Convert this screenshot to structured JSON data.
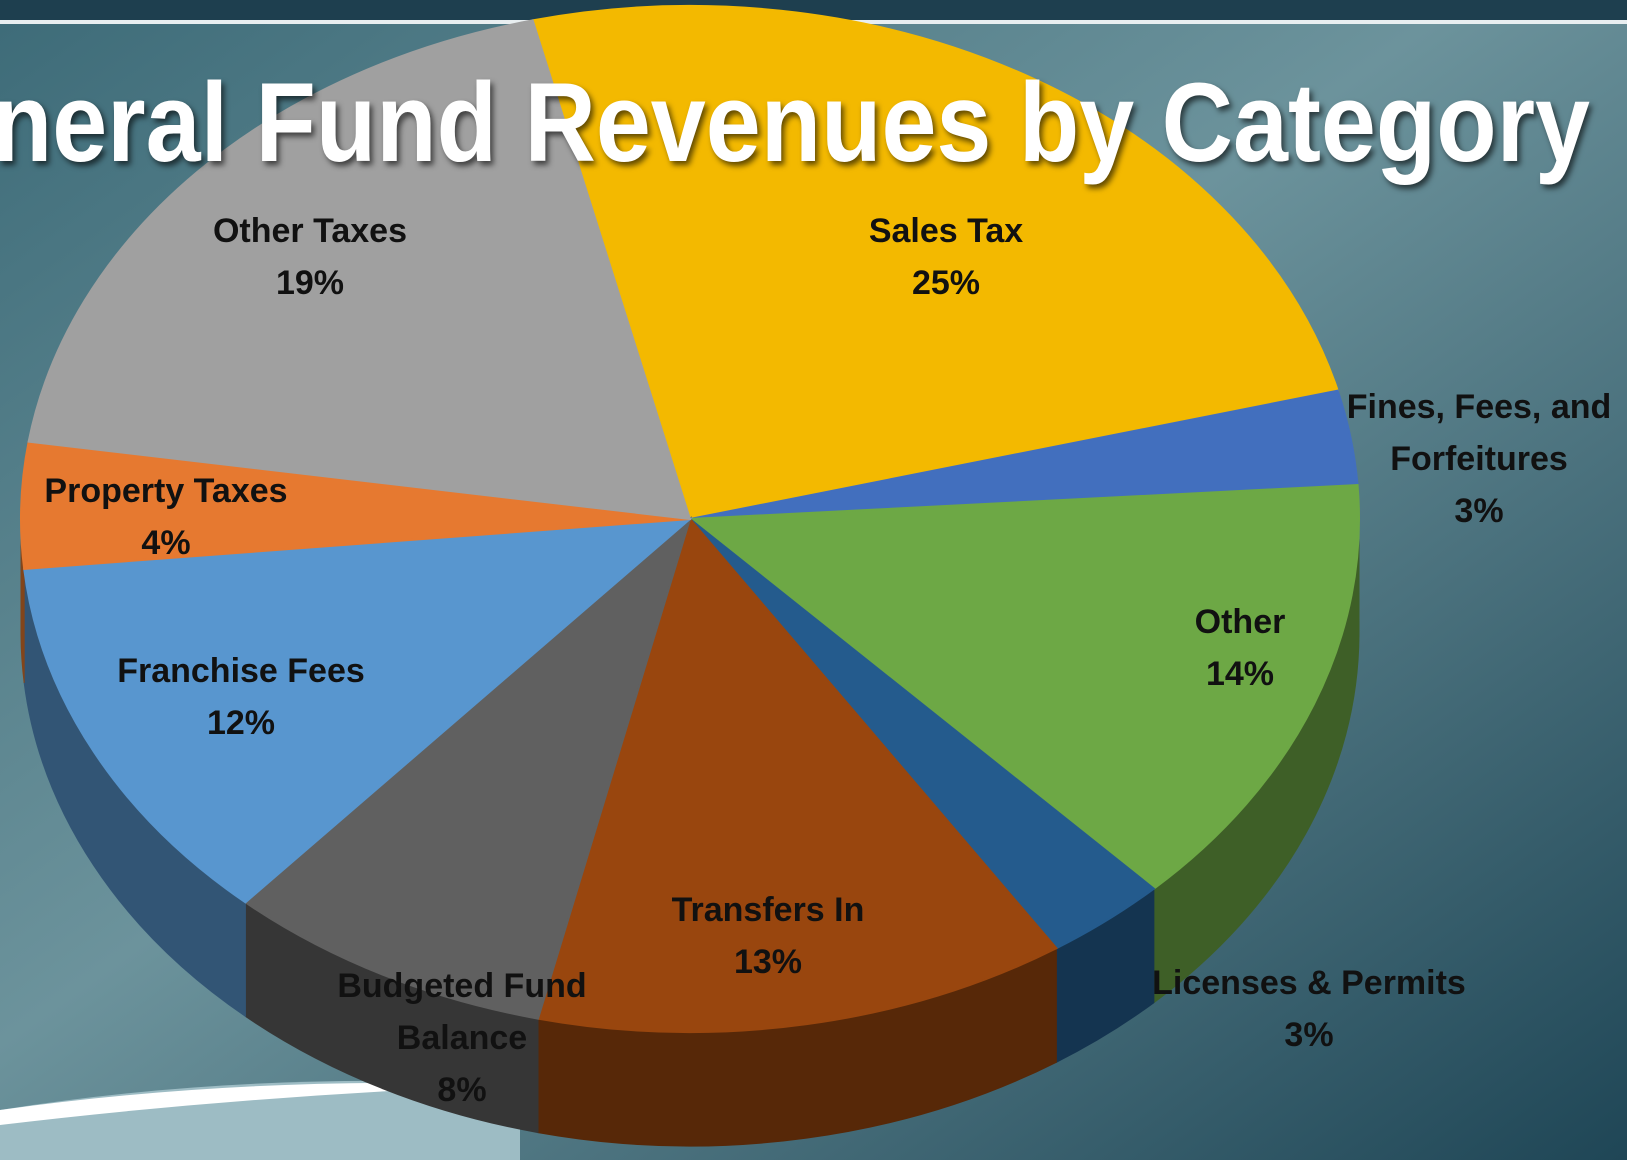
{
  "chart_data": {
    "type": "pie",
    "title": "General Fund Revenues by Category",
    "categories": [
      "Sales Tax",
      "Fines, Fees, and Forfeitures",
      "Other",
      "Licenses & Permits",
      "Transfers In",
      "Budgeted Fund Balance",
      "Franchise Fees",
      "Property Taxes",
      "Other Taxes"
    ],
    "values": [
      25,
      3,
      14,
      3,
      13,
      8,
      12,
      4,
      19
    ],
    "value_labels": [
      "25%",
      "3%",
      "14%",
      "3%",
      "13%",
      "8%",
      "12%",
      "4%",
      "19%"
    ],
    "colors": [
      "#fbbf00",
      "#4472c4",
      "#70ad47",
      "#255e91",
      "#9e480e",
      "#636363",
      "#5b9bd5",
      "#ed7d31",
      "#a5a5a5"
    ]
  }
}
